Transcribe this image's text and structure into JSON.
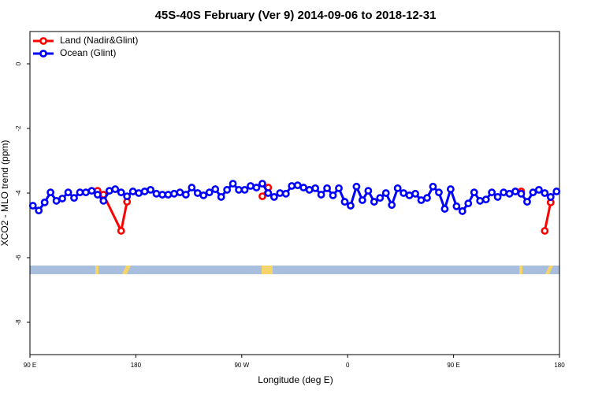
{
  "chart_data": {
    "type": "line",
    "title": "45S-40S February (Ver 9)   2014-09-06 to 2018-12-31",
    "x_label": "Longitude (deg E)",
    "y_label": "XCO2 - MLO trend (ppm)",
    "xlim": [
      90,
      540
    ],
    "xticks": [
      {
        "value": 90,
        "label": "90 E"
      },
      180,
      {
        "value": 270,
        "label": "90 W"
      },
      {
        "value": 360,
        "label": "0"
      },
      {
        "value": 450,
        "label": "90 E"
      },
      {
        "value": 540,
        "label": "180"
      }
    ],
    "ylim": [
      -9,
      1
    ],
    "yticks": [
      0,
      -2,
      -4,
      -6,
      -8
    ],
    "legend": "topleft",
    "series": [
      {
        "name": "Land (Nadir&Glint)",
        "color": "#ff0000",
        "x": [
          147.5,
          152.5,
          167.5,
          172.5,
          null,
          287.5,
          292.5,
          null,
          507.5,
          null,
          527.5,
          532.5
        ],
        "values": [
          -3.93,
          -4.05,
          -5.17,
          -4.27,
          null,
          -4.1,
          -3.83,
          null,
          -3.95,
          null,
          -5.17,
          -4.29
        ]
      },
      {
        "name": "Ocean (Glint)",
        "color": "#0000ff",
        "x": [
          92.5,
          97.5,
          102.5,
          107.5,
          112.5,
          117.5,
          122.5,
          127.5,
          132.5,
          137.5,
          142.5,
          147.5,
          152.5,
          157.5,
          162.5,
          167.5,
          172.5,
          177.5,
          182.5,
          187.5,
          192.5,
          197.5,
          202.5,
          207.5,
          212.5,
          217.5,
          222.5,
          227.5,
          232.5,
          237.5,
          242.5,
          247.5,
          252.5,
          257.5,
          262.5,
          267.5,
          272.5,
          277.5,
          282.5,
          287.5,
          292.5,
          297.5,
          302.5,
          307.5,
          312.5,
          317.5,
          322.5,
          327.5,
          332.5,
          337.5,
          342.5,
          347.5,
          352.5,
          357.5,
          362.5,
          367.5,
          372.5,
          377.5,
          382.5,
          387.5,
          392.5,
          397.5,
          402.5,
          407.5,
          412.5,
          417.5,
          422.5,
          427.5,
          432.5,
          437.5,
          442.5,
          447.5,
          452.5,
          457.5,
          462.5,
          467.5,
          472.5,
          477.5,
          482.5,
          487.5,
          492.5,
          497.5,
          502.5,
          507.5,
          512.5,
          517.5,
          522.5,
          527.5,
          532.5,
          537.5
        ],
        "values": [
          -4.39,
          -4.54,
          -4.29,
          -3.98,
          -4.24,
          -4.17,
          -3.98,
          -4.15,
          -3.98,
          -3.98,
          -3.93,
          -4.05,
          -4.24,
          -3.93,
          -3.88,
          -3.98,
          -4.1,
          -3.95,
          -4.0,
          -3.95,
          -3.9,
          -4.02,
          -4.05,
          -4.05,
          -4.02,
          -3.98,
          -4.05,
          -3.83,
          -4.0,
          -4.07,
          -3.98,
          -3.88,
          -4.12,
          -3.9,
          -3.71,
          -3.9,
          -3.9,
          -3.78,
          -3.83,
          -3.71,
          -4.0,
          -4.12,
          -4.0,
          -4.02,
          -3.78,
          -3.76,
          -3.83,
          -3.9,
          -3.85,
          -4.05,
          -3.85,
          -4.07,
          -3.85,
          -4.27,
          -4.39,
          -3.8,
          -4.22,
          -3.93,
          -4.27,
          -4.15,
          -4.0,
          -4.37,
          -3.85,
          -4.0,
          -4.07,
          -4.02,
          -4.22,
          -4.15,
          -3.8,
          -3.98,
          -4.49,
          -3.88,
          -4.41,
          -4.56,
          -4.32,
          -3.98,
          -4.24,
          -4.2,
          -3.98,
          -4.12,
          -3.98,
          -4.02,
          -3.95,
          -4.02,
          -4.27,
          -3.98,
          -3.9,
          -4.0,
          -4.12,
          -3.95
        ]
      }
    ]
  }
}
